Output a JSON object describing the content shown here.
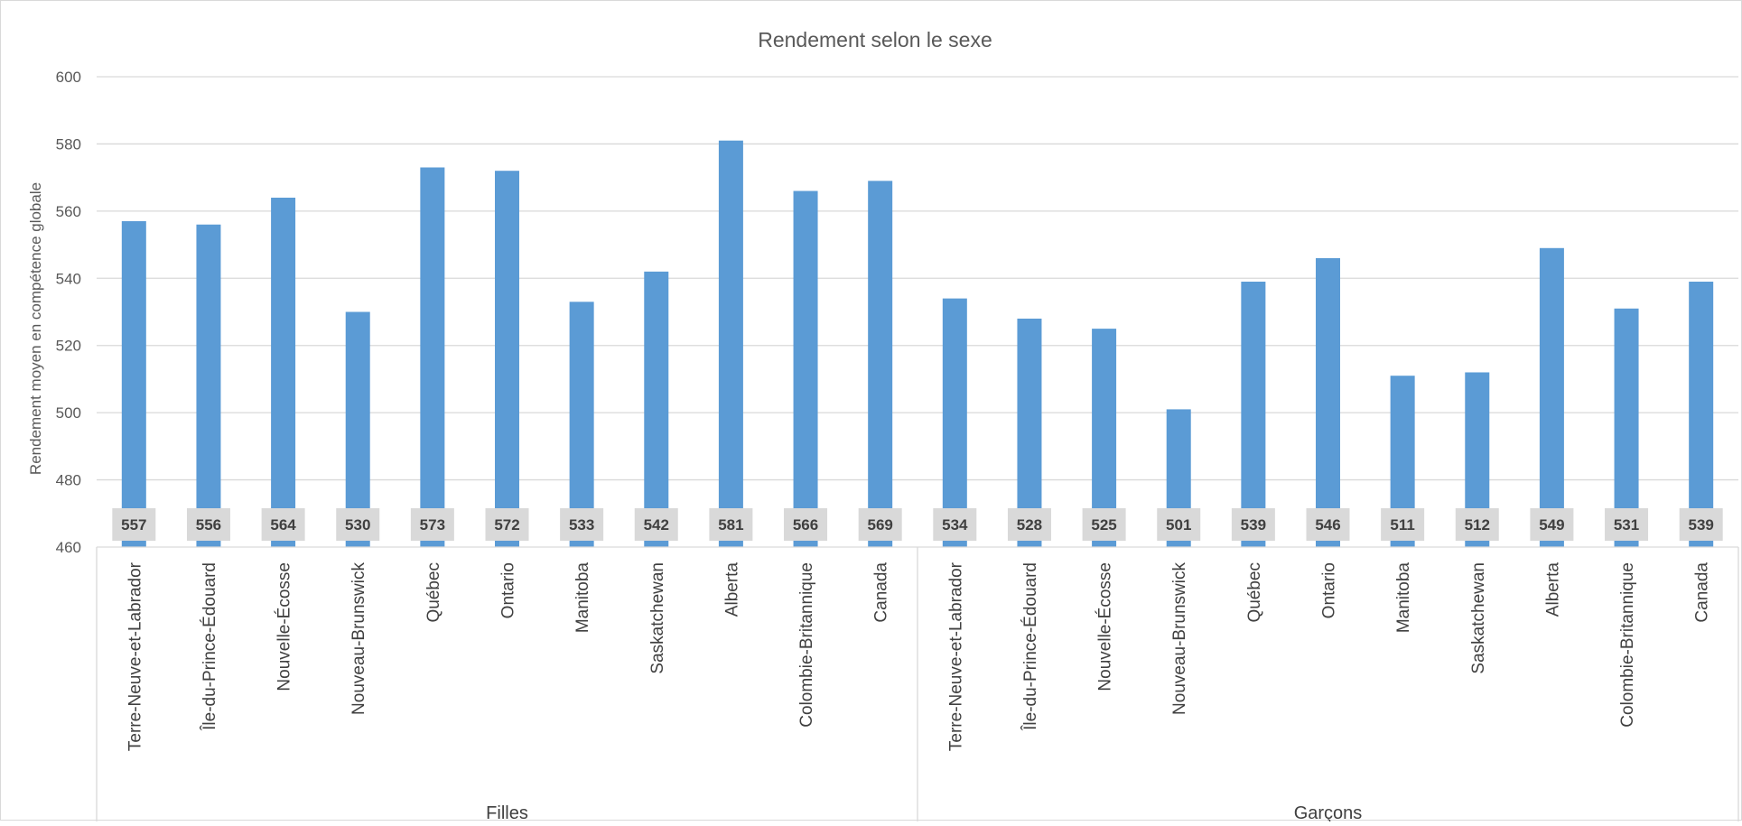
{
  "chart_data": {
    "type": "bar",
    "title": "Rendement selon le sexe",
    "xlabel": "",
    "ylabel": "Rendement moyen en compétence globale",
    "ylim": [
      460,
      600
    ],
    "yticks": [
      460,
      480,
      500,
      520,
      540,
      560,
      580,
      600
    ],
    "grid": true,
    "legend": "none",
    "color": "#5b9bd5",
    "groups": [
      {
        "name": "Filles",
        "categories": [
          "Terre-Neuve-et-Labrador",
          "Île-du-Prince-Édouard",
          "Nouvelle-Écosse",
          "Nouveau-Brunswick",
          "Québec",
          "Ontario",
          "Manitoba",
          "Saskatchewan",
          "Alberta",
          "Colombie-Britannique",
          "Canada"
        ],
        "values": [
          557,
          556,
          564,
          530,
          573,
          572,
          533,
          542,
          581,
          566,
          569
        ]
      },
      {
        "name": "Garçons",
        "categories": [
          "Terre-Neuve-et-Labrador",
          "Île-du-Prince-Édouard",
          "Nouvelle-Écosse",
          "Nouveau-Brunswick",
          "Québec",
          "Ontario",
          "Manitoba",
          "Saskatchewan",
          "Alberta",
          "Colombie-Britannique",
          "Canada"
        ],
        "values": [
          534,
          528,
          525,
          501,
          539,
          546,
          511,
          512,
          549,
          531,
          539
        ]
      }
    ]
  }
}
